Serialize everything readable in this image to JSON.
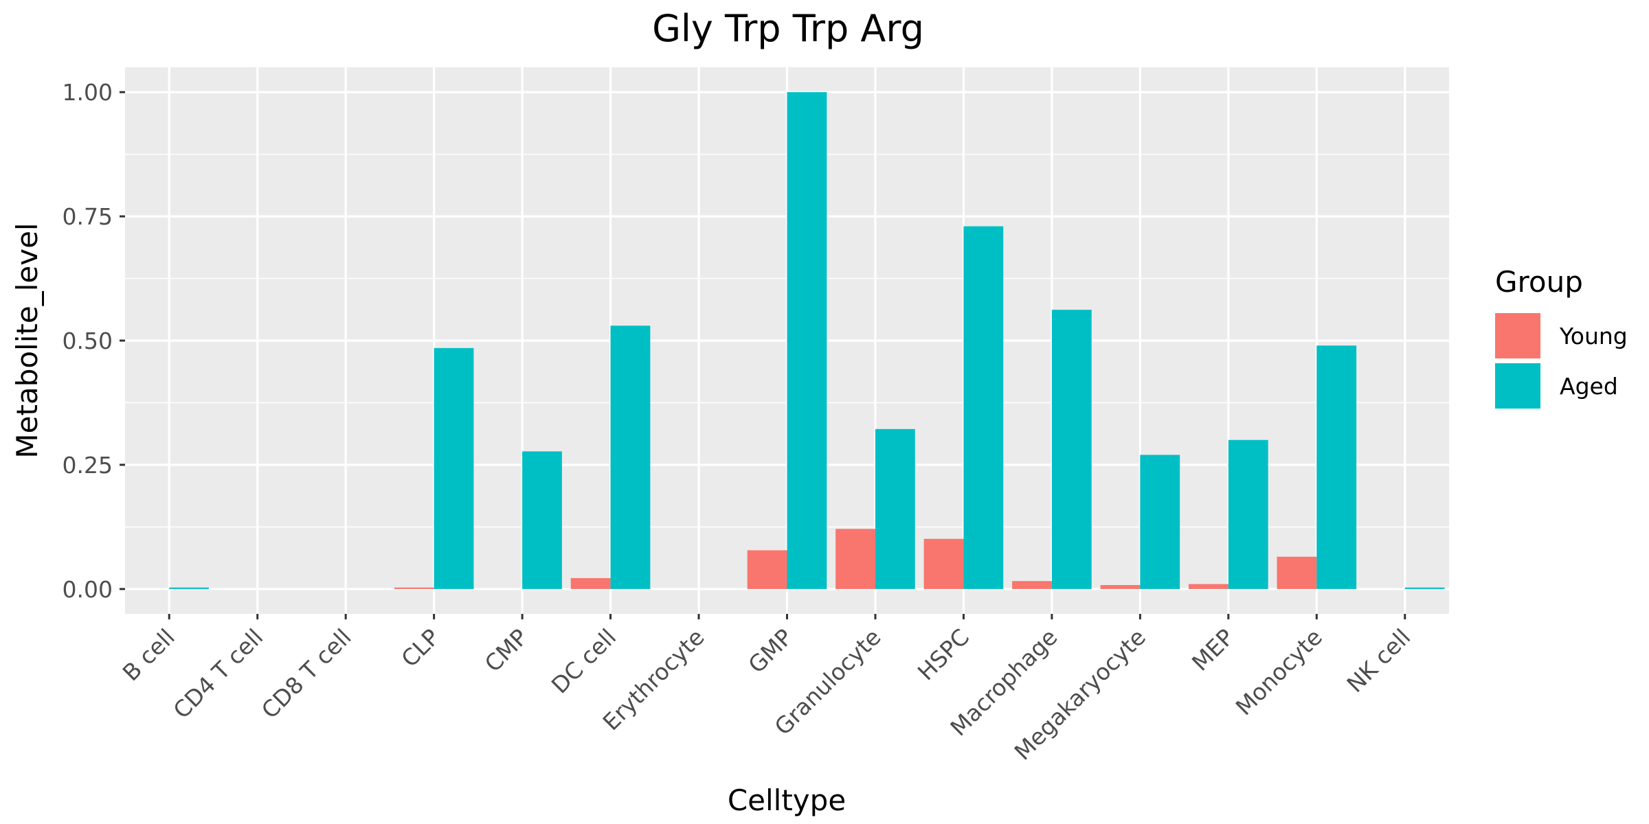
{
  "chart_data": {
    "type": "bar",
    "title": "Gly Trp Trp Arg",
    "xlabel": "Celltype",
    "ylabel": "Metabolite_level",
    "ylim": [
      -0.05,
      1.05
    ],
    "yticks": [
      "0.00",
      "0.25",
      "0.50",
      "0.75",
      "1.00"
    ],
    "ytick_values": [
      0,
      0.25,
      0.5,
      0.75,
      1.0
    ],
    "grid": true,
    "legend": {
      "title": "Group",
      "placement": "right"
    },
    "categories": [
      "B cell",
      "CD4 T cell",
      "CD8 T cell",
      "CLP",
      "CMP",
      "DC cell",
      "Erythrocyte",
      "GMP",
      "Granulocyte",
      "HSPC",
      "Macrophage",
      "Megakaryocyte",
      "MEP",
      "Monocyte",
      "NK cell"
    ],
    "series": [
      {
        "name": "Young",
        "color": "#F8766D",
        "values": [
          0,
          0,
          0,
          0.003,
          0,
          0.022,
          0,
          0.078,
          0.121,
          0.101,
          0.016,
          0.008,
          0.01,
          0.065,
          0
        ]
      },
      {
        "name": "Aged",
        "color": "#00BFC4",
        "values": [
          0.003,
          0,
          0,
          0.485,
          0.277,
          0.53,
          0,
          1.0,
          0.322,
          0.73,
          0.562,
          0.27,
          0.3,
          0.49,
          0.003
        ]
      }
    ]
  }
}
